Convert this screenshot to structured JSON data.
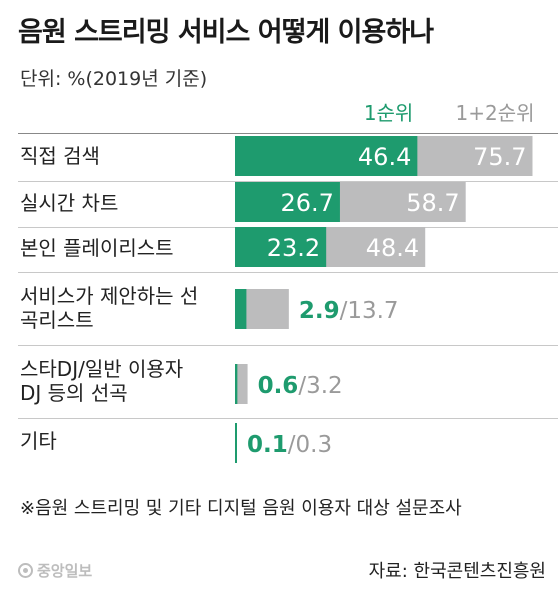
{
  "title": "음원 스트리밍 서비스 어떻게 이용하나",
  "unit": "단위: %(2019년 기준)",
  "footnote": "※음원 스트리밍 및 기타 디지털 음원 이용자 대상 설문조사",
  "source": "자료: 한국콘텐츠진흥원",
  "logo_text": "중앙일보",
  "colors": {
    "first": "#1e9b6e",
    "combined": "#bcbcbd",
    "first_text": "#1e9b6e",
    "combined_text": "#9a9a9a",
    "inner_text": "#ffffff"
  },
  "rows": [
    {
      "label": "직접 검색"
    },
    {
      "label": "실시간 차트"
    },
    {
      "label": "본인 플레이리스트"
    },
    {
      "label": "서비스가 제안하는 선곡리스트"
    },
    {
      "label": "스타DJ/일반 이용자 DJ 등의 선곡"
    },
    {
      "label": "기타"
    }
  ],
  "chart_data": {
    "type": "bar",
    "orientation": "horizontal",
    "overlapping": true,
    "categories": [
      "직접 검색",
      "실시간 차트",
      "본인 플레이리스트",
      "서비스가 제안하는 선곡리스트",
      "스타DJ/일반 이용자 DJ 등의 선곡",
      "기타"
    ],
    "series": [
      {
        "name": "1순위",
        "values": [
          46.4,
          26.7,
          23.2,
          2.9,
          0.6,
          0.1
        ]
      },
      {
        "name": "1+2순위",
        "values": [
          75.7,
          58.7,
          48.4,
          13.7,
          3.2,
          0.3
        ]
      }
    ],
    "separator": "/",
    "xlim": [
      0,
      100
    ],
    "grid": false,
    "legend_placement": "top"
  }
}
